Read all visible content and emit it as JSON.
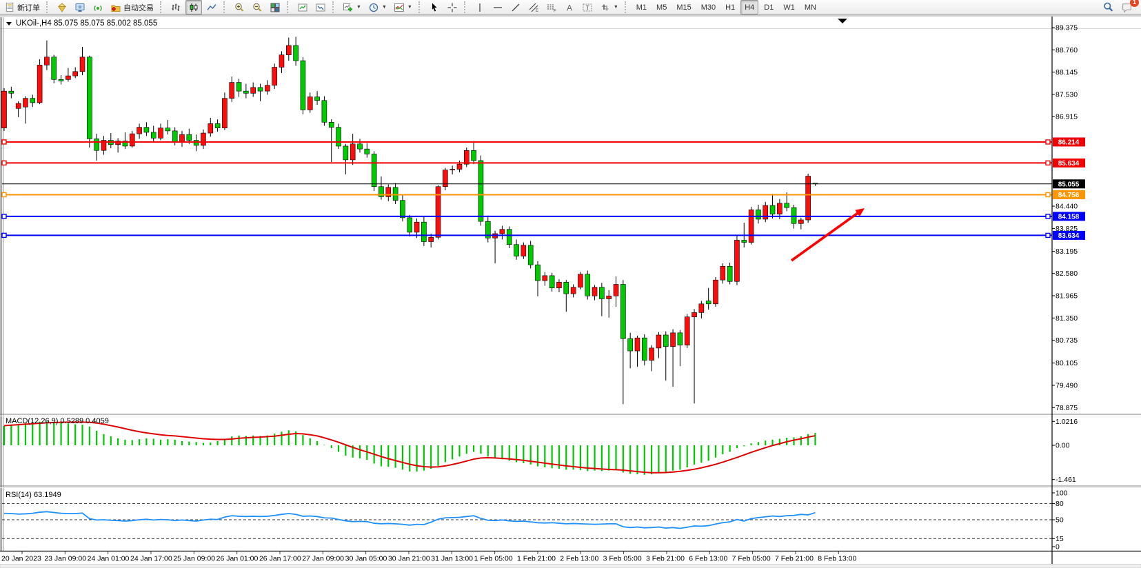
{
  "toolbar": {
    "new_order_label": "新订单",
    "auto_trading_label": "自动交易",
    "timeframes": [
      "M1",
      "M5",
      "M15",
      "M30",
      "H1",
      "H4",
      "D1",
      "W1",
      "MN"
    ],
    "active_timeframe": "H4",
    "notification_count": "1",
    "icon_names": [
      "new-order-page-icon",
      "gem-icon",
      "terminal-icon",
      "broadcast-icon",
      "auto-trading-icon",
      "bar-chart-icon",
      "candlestick-chart-icon",
      "line-chart-icon",
      "zoom-in-icon",
      "zoom-out-icon",
      "tile-windows-icon",
      "profile-chart-icon",
      "profile-chart2-icon",
      "new-chart-icon",
      "timeframe-clock-icon",
      "indicators-icon",
      "cursor-icon",
      "crosshair-icon",
      "vertical-line-icon",
      "horizontal-line-icon",
      "trendline-icon",
      "equidistant-channel-icon",
      "fibonacci-icon",
      "text-icon",
      "text-label-icon",
      "arrows-icon",
      "search-icon",
      "chat-icon"
    ]
  },
  "chart": {
    "title_line": "UKOil-,H4  85.075 85.075 85.002 85.055",
    "symbol_period": "UKOil-,H4",
    "quote": {
      "open": "85.075",
      "high": "85.075",
      "low": "85.002",
      "close": "85.055"
    },
    "macd_label": "MACD(12,26,9) 0.5289 0.4059",
    "rsi_label": "RSI(14) 63.1949"
  },
  "chart_data": [
    {
      "type": "candlestick",
      "title": "UKOil-,H4",
      "bull_color": "#fe0d0d",
      "bear_color": "#00ca00",
      "wick_color": "#000000",
      "ylim": [
        78.875,
        89.375
      ],
      "y_ticks": [
        "89.375",
        "88.760",
        "88.145",
        "87.530",
        "86.915",
        "84.440",
        "83.825",
        "83.195",
        "82.580",
        "81.965",
        "81.350",
        "80.735",
        "80.105",
        "79.490",
        "78.875"
      ],
      "hlines": [
        {
          "label": "86.214",
          "price": 86.214,
          "color": "#f00000",
          "width": 2
        },
        {
          "label": "85.634",
          "price": 85.634,
          "color": "#f00000",
          "width": 2
        },
        {
          "label": "85.055",
          "price": 85.055,
          "color": "#000000",
          "width": 1,
          "is_current_price": true
        },
        {
          "label": "84.756",
          "price": 84.756,
          "color": "#ff9500",
          "width": 2
        },
        {
          "label": "84.158",
          "price": 84.158,
          "color": "#0000ff",
          "width": 2
        },
        {
          "label": "83.634",
          "price": 83.634,
          "color": "#0000ff",
          "width": 2
        }
      ],
      "annotation": {
        "type": "arrow",
        "from": [
          1148,
          378
        ],
        "to": [
          1254,
          302
        ],
        "color": "#ff0000"
      },
      "x_labels": [
        "20 Jan 2023",
        "23 Jan 09:00",
        "24 Jan 01:00",
        "24 Jan 17:00",
        "25 Jan 09:00",
        "26 Jan 01:00",
        "26 Jan 17:00",
        "27 Jan 09:00",
        "30 Jan 05:00",
        "30 Jan 21:00",
        "31 Jan 13:00",
        "1 Feb 05:00",
        "1 Feb 21:00",
        "2 Feb 13:00",
        "3 Feb 05:00",
        "3 Feb 21:00",
        "6 Feb 13:00",
        "7 Feb 05:00",
        "7 Feb 21:00",
        "8 Feb 13:00"
      ],
      "candles": [
        [
          86.6,
          87.7,
          86.52,
          87.62
        ],
        [
          87.62,
          87.74,
          87.42,
          87.56
        ],
        [
          87.14,
          87.34,
          86.9,
          87.28
        ],
        [
          87.18,
          87.48,
          86.72,
          87.42
        ],
        [
          87.42,
          87.52,
          87.18,
          87.3
        ],
        [
          87.3,
          88.5,
          87.26,
          88.34
        ],
        [
          88.34,
          89.02,
          88.2,
          88.56
        ],
        [
          88.56,
          88.62,
          87.84,
          87.94
        ],
        [
          87.94,
          88.06,
          87.8,
          87.9
        ],
        [
          87.94,
          88.26,
          87.88,
          88.04
        ],
        [
          88.04,
          88.28,
          87.98,
          88.16
        ],
        [
          88.16,
          88.84,
          88.06,
          88.56
        ],
        [
          88.56,
          88.6,
          86.06,
          86.3
        ],
        [
          86.3,
          86.44,
          85.7,
          85.98
        ],
        [
          85.98,
          86.38,
          85.86,
          86.26
        ],
        [
          86.26,
          86.46,
          86.04,
          86.14
        ],
        [
          86.14,
          86.32,
          85.92,
          86.24
        ],
        [
          86.24,
          86.48,
          86.02,
          86.1
        ],
        [
          86.1,
          86.52,
          86.06,
          86.44
        ],
        [
          86.44,
          86.72,
          86.3,
          86.62
        ],
        [
          86.62,
          86.76,
          86.38,
          86.48
        ],
        [
          86.48,
          86.66,
          86.22,
          86.32
        ],
        [
          86.32,
          86.72,
          86.26,
          86.6
        ],
        [
          86.6,
          86.82,
          86.42,
          86.52
        ],
        [
          86.52,
          86.62,
          86.12,
          86.22
        ],
        [
          86.22,
          86.52,
          86.08,
          86.42
        ],
        [
          86.42,
          86.58,
          86.16,
          86.26
        ],
        [
          86.26,
          86.42,
          85.96,
          86.12
        ],
        [
          86.12,
          86.56,
          86.02,
          86.46
        ],
        [
          86.46,
          86.88,
          86.36,
          86.72
        ],
        [
          86.72,
          86.84,
          86.5,
          86.6
        ],
        [
          86.6,
          87.58,
          86.54,
          87.42
        ],
        [
          87.42,
          88.02,
          87.32,
          87.86
        ],
        [
          87.86,
          87.96,
          87.46,
          87.62
        ],
        [
          87.62,
          87.82,
          87.42,
          87.56
        ],
        [
          87.56,
          87.86,
          87.46,
          87.72
        ],
        [
          87.72,
          87.82,
          87.34,
          87.62
        ],
        [
          87.62,
          87.92,
          87.52,
          87.78
        ],
        [
          87.78,
          88.38,
          87.68,
          88.28
        ],
        [
          88.28,
          88.72,
          88.12,
          88.62
        ],
        [
          88.62,
          89.1,
          88.46,
          88.88
        ],
        [
          88.88,
          89.12,
          88.32,
          88.46
        ],
        [
          88.46,
          88.56,
          86.98,
          87.1
        ],
        [
          87.1,
          87.58,
          87.02,
          87.46
        ],
        [
          87.46,
          87.62,
          87.24,
          87.36
        ],
        [
          87.36,
          87.48,
          86.66,
          86.76
        ],
        [
          86.76,
          86.84,
          85.66,
          86.62
        ],
        [
          86.62,
          86.72,
          86.02,
          86.1
        ],
        [
          86.1,
          86.16,
          85.32,
          85.72
        ],
        [
          85.72,
          86.44,
          85.58,
          86.16
        ],
        [
          86.16,
          86.3,
          85.92,
          86.02
        ],
        [
          86.02,
          86.18,
          85.78,
          85.88
        ],
        [
          85.88,
          85.96,
          84.86,
          84.98
        ],
        [
          84.98,
          85.26,
          84.62,
          84.7
        ],
        [
          84.7,
          85.04,
          84.58,
          84.96
        ],
        [
          84.96,
          85.08,
          84.5,
          84.6
        ],
        [
          84.6,
          84.74,
          84.02,
          84.12
        ],
        [
          84.12,
          84.2,
          83.6,
          83.72
        ],
        [
          83.72,
          84.1,
          83.56,
          84.0
        ],
        [
          84.0,
          84.14,
          83.34,
          83.46
        ],
        [
          83.46,
          83.68,
          83.3,
          83.58
        ],
        [
          83.58,
          85.02,
          83.52,
          84.98
        ],
        [
          84.98,
          85.5,
          84.88,
          85.44
        ],
        [
          85.44,
          85.56,
          85.32,
          85.46
        ],
        [
          85.46,
          85.7,
          85.38,
          85.6
        ],
        [
          85.6,
          86.06,
          85.52,
          85.98
        ],
        [
          85.98,
          86.24,
          85.6,
          85.7
        ],
        [
          85.7,
          85.84,
          83.9,
          84.02
        ],
        [
          84.02,
          84.18,
          83.44,
          83.56
        ],
        [
          83.56,
          83.76,
          82.86,
          83.68
        ],
        [
          83.68,
          83.9,
          83.52,
          83.8
        ],
        [
          83.8,
          83.88,
          83.28,
          83.38
        ],
        [
          83.38,
          83.52,
          82.96,
          83.06
        ],
        [
          83.06,
          83.44,
          82.98,
          83.36
        ],
        [
          83.36,
          83.48,
          82.72,
          82.82
        ],
        [
          82.82,
          82.92,
          81.95,
          82.38
        ],
        [
          82.38,
          82.62,
          82.24,
          82.52
        ],
        [
          82.52,
          82.6,
          82.08,
          82.18
        ],
        [
          82.18,
          82.42,
          82.06,
          82.34
        ],
        [
          82.34,
          82.4,
          81.52,
          82.02
        ],
        [
          82.02,
          82.28,
          81.92,
          82.2
        ],
        [
          82.2,
          82.62,
          82.14,
          82.56
        ],
        [
          82.56,
          82.66,
          81.86,
          81.96
        ],
        [
          81.96,
          82.26,
          81.84,
          82.2
        ],
        [
          82.2,
          82.32,
          81.4,
          81.88
        ],
        [
          81.88,
          82.12,
          81.36,
          81.96
        ],
        [
          81.96,
          82.5,
          81.66,
          82.28
        ],
        [
          82.28,
          82.4,
          78.97,
          80.78
        ],
        [
          80.78,
          80.94,
          79.96,
          80.44
        ],
        [
          80.44,
          80.86,
          80.0,
          80.8
        ],
        [
          80.8,
          80.9,
          80.04,
          80.18
        ],
        [
          80.18,
          80.6,
          79.88,
          80.52
        ],
        [
          80.52,
          80.96,
          80.24,
          80.88
        ],
        [
          80.88,
          80.98,
          79.62,
          80.56
        ],
        [
          80.56,
          81.04,
          79.45,
          80.94
        ],
        [
          80.94,
          81.02,
          80.02,
          80.6
        ],
        [
          80.6,
          81.46,
          80.52,
          81.38
        ],
        [
          81.38,
          81.6,
          78.99,
          81.5
        ],
        [
          81.5,
          81.82,
          81.34,
          81.74
        ],
        [
          81.82,
          82.18,
          81.58,
          81.74
        ],
        [
          81.74,
          82.48,
          81.66,
          82.4
        ],
        [
          82.4,
          82.86,
          82.3,
          82.78
        ],
        [
          82.78,
          82.88,
          82.28,
          82.36
        ],
        [
          82.36,
          83.62,
          82.26,
          83.5
        ],
        [
          83.5,
          83.98,
          83.3,
          83.44
        ],
        [
          83.44,
          84.42,
          83.38,
          84.34
        ],
        [
          84.34,
          84.48,
          83.96,
          84.08
        ],
        [
          84.08,
          84.56,
          84.0,
          84.46
        ],
        [
          84.46,
          84.78,
          84.1,
          84.22
        ],
        [
          84.22,
          84.64,
          84.08,
          84.52
        ],
        [
          84.52,
          84.82,
          84.3,
          84.4
        ],
        [
          84.4,
          84.48,
          83.82,
          83.96
        ],
        [
          83.96,
          84.12,
          83.8,
          84.06
        ],
        [
          84.06,
          85.34,
          83.98,
          85.27
        ],
        [
          85.075,
          85.075,
          85.002,
          85.055
        ]
      ]
    },
    {
      "type": "macd",
      "label": "MACD(12,26,9) 0.5289 0.4059",
      "macd_value": "0.5289",
      "signal_value": "0.4059",
      "axis_ticks": [
        "1.0216",
        "0.00",
        "-1.461"
      ],
      "histogram_color": "#00c800",
      "signal_color": "#e00000",
      "histogram": [
        0.82,
        0.86,
        0.9,
        0.95,
        0.99,
        1.01,
        1.02,
        1.0,
        0.97,
        0.93,
        0.9,
        0.88,
        0.8,
        0.62,
        0.48,
        0.38,
        0.3,
        0.24,
        0.22,
        0.26,
        0.3,
        0.28,
        0.24,
        0.26,
        0.24,
        0.18,
        0.16,
        0.14,
        0.1,
        0.12,
        0.18,
        0.26,
        0.38,
        0.42,
        0.4,
        0.42,
        0.4,
        0.42,
        0.5,
        0.58,
        0.64,
        0.6,
        0.44,
        0.3,
        0.18,
        0.02,
        -0.12,
        -0.28,
        -0.44,
        -0.52,
        -0.56,
        -0.62,
        -0.78,
        -0.9,
        -0.92,
        -0.96,
        -1.04,
        -1.12,
        -1.12,
        -1.08,
        -1.0,
        -0.88,
        -0.72,
        -0.6,
        -0.48,
        -0.36,
        -0.28,
        -0.36,
        -0.48,
        -0.56,
        -0.6,
        -0.66,
        -0.72,
        -0.76,
        -0.82,
        -0.9,
        -0.94,
        -0.98,
        -1.0,
        -1.04,
        -1.04,
        -1.06,
        -1.1,
        -1.08,
        -1.1,
        -1.08,
        -1.02,
        -1.16,
        -1.22,
        -1.24,
        -1.26,
        -1.24,
        -1.18,
        -1.14,
        -1.08,
        -1.04,
        -0.94,
        -0.82,
        -0.74,
        -0.66,
        -0.52,
        -0.38,
        -0.28,
        -0.12,
        -0.04,
        0.08,
        0.14,
        0.2,
        0.24,
        0.28,
        0.32,
        0.34,
        0.38,
        0.48,
        0.53
      ],
      "signal": [
        0.84,
        0.86,
        0.88,
        0.9,
        0.92,
        0.94,
        0.96,
        0.97,
        0.98,
        0.99,
        0.99,
        0.99,
        0.98,
        0.95,
        0.9,
        0.84,
        0.78,
        0.71,
        0.64,
        0.58,
        0.53,
        0.49,
        0.45,
        0.42,
        0.4,
        0.37,
        0.34,
        0.31,
        0.28,
        0.26,
        0.25,
        0.25,
        0.27,
        0.3,
        0.32,
        0.34,
        0.35,
        0.37,
        0.39,
        0.43,
        0.47,
        0.5,
        0.49,
        0.45,
        0.4,
        0.32,
        0.23,
        0.13,
        0.02,
        -0.09,
        -0.19,
        -0.28,
        -0.38,
        -0.48,
        -0.57,
        -0.65,
        -0.73,
        -0.81,
        -0.87,
        -0.91,
        -0.93,
        -0.92,
        -0.88,
        -0.82,
        -0.75,
        -0.67,
        -0.59,
        -0.54,
        -0.53,
        -0.54,
        -0.56,
        -0.58,
        -0.61,
        -0.64,
        -0.68,
        -0.72,
        -0.76,
        -0.8,
        -0.84,
        -0.88,
        -0.91,
        -0.94,
        -0.97,
        -0.99,
        -1.01,
        -1.03,
        -1.04,
        -1.06,
        -1.09,
        -1.12,
        -1.15,
        -1.17,
        -1.17,
        -1.16,
        -1.14,
        -1.11,
        -1.07,
        -1.02,
        -0.96,
        -0.89,
        -0.81,
        -0.72,
        -0.62,
        -0.52,
        -0.41,
        -0.3,
        -0.2,
        -0.1,
        -0.01,
        0.07,
        0.15,
        0.22,
        0.28,
        0.35,
        0.41
      ]
    },
    {
      "type": "rsi",
      "label": "RSI(14) 63.1949",
      "value": "63.1949",
      "line_color": "#1e90ff",
      "axis_ticks": [
        "100",
        "80",
        "50",
        "15",
        "0"
      ],
      "dashed_levels": [
        80,
        50,
        15
      ],
      "values": [
        62,
        61.5,
        60.5,
        61,
        62,
        64,
        65,
        63.5,
        62,
        61.5,
        61.5,
        62.5,
        52,
        49.5,
        50,
        49,
        48.5,
        47.5,
        48.5,
        50,
        51,
        49.5,
        50.5,
        50,
        48.5,
        49.5,
        48.5,
        47.5,
        49.5,
        51,
        50.5,
        55,
        57.5,
        56.5,
        56,
        56.5,
        56,
        56.5,
        58,
        60,
        61.5,
        60,
        56.5,
        57,
        56,
        53.5,
        53,
        50.5,
        48,
        46.5,
        47,
        46.5,
        43.5,
        42.5,
        43,
        42.5,
        41.5,
        40,
        41.5,
        41,
        45.5,
        51,
        53.5,
        54,
        54.5,
        56,
        57.5,
        52.5,
        49,
        48.5,
        49.5,
        48,
        47,
        47.5,
        46,
        44.5,
        44,
        44.5,
        43.5,
        42.5,
        43,
        42.5,
        42,
        41.5,
        42,
        42.5,
        42.5,
        37,
        35.5,
        36.5,
        35,
        35.5,
        36.5,
        34.5,
        35.5,
        34,
        36,
        38.5,
        38,
        39,
        42,
        44.5,
        46,
        50.5,
        47.5,
        52,
        54,
        55.5,
        57,
        56,
        57.5,
        58,
        60,
        59,
        63.2
      ]
    }
  ]
}
